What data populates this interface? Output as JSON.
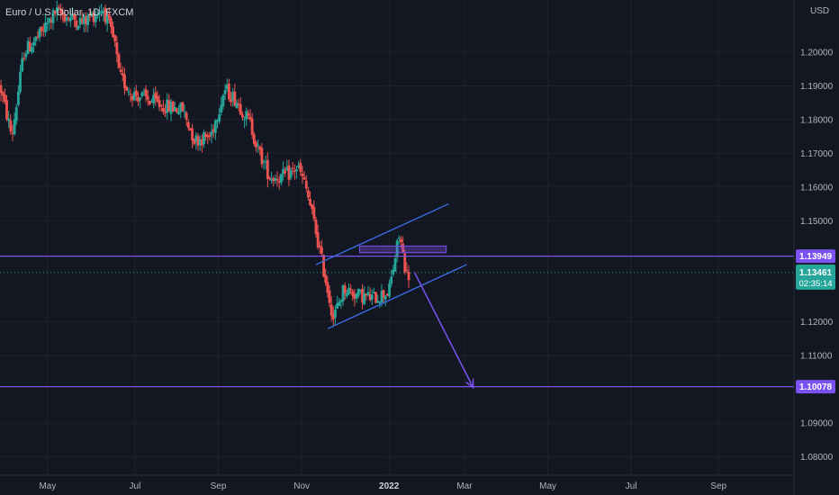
{
  "header": {
    "symbol_title": "Euro / U.S. Dollar, 1D, FXCM"
  },
  "price_axis": {
    "currency": "USD"
  },
  "chart_data": {
    "type": "candlestick",
    "title": "Euro / U.S. Dollar, 1D, FXCM",
    "ylim": [
      1.0745,
      1.2155
    ],
    "y_ticks": [
      "1.20000",
      "1.19000",
      "1.18000",
      "1.17000",
      "1.16000",
      "1.15000",
      "1.12000",
      "1.11000",
      "1.09000",
      "1.08000"
    ],
    "x_ticks": [
      {
        "label": "May",
        "t": 0.06
      },
      {
        "label": "Jul",
        "t": 0.17
      },
      {
        "label": "Sep",
        "t": 0.275
      },
      {
        "label": "Nov",
        "t": 0.38
      },
      {
        "label": "2022",
        "t": 0.49,
        "bold": true
      },
      {
        "label": "Mar",
        "t": 0.585
      },
      {
        "label": "May",
        "t": 0.69
      },
      {
        "label": "Jul",
        "t": 0.795
      },
      {
        "label": "Sep",
        "t": 0.905
      }
    ],
    "candles": {
      "color_up": "#26a69a",
      "color_down": "#ef5350",
      "anchors": [
        [
          0.0,
          1.19
        ],
        [
          0.015,
          1.175
        ],
        [
          0.03,
          1.2
        ],
        [
          0.05,
          1.205
        ],
        [
          0.07,
          1.212
        ],
        [
          0.09,
          1.21
        ],
        [
          0.105,
          1.209
        ],
        [
          0.13,
          1.213
        ],
        [
          0.145,
          1.202
        ],
        [
          0.15,
          1.193
        ],
        [
          0.165,
          1.188
        ],
        [
          0.185,
          1.186
        ],
        [
          0.205,
          1.184
        ],
        [
          0.23,
          1.183
        ],
        [
          0.245,
          1.174
        ],
        [
          0.265,
          1.175
        ],
        [
          0.283,
          1.189
        ],
        [
          0.297,
          1.186
        ],
        [
          0.315,
          1.179
        ],
        [
          0.325,
          1.171
        ],
        [
          0.34,
          1.163
        ],
        [
          0.355,
          1.163
        ],
        [
          0.365,
          1.164
        ],
        [
          0.375,
          1.166
        ],
        [
          0.385,
          1.16
        ],
        [
          0.395,
          1.15
        ],
        [
          0.408,
          1.135
        ],
        [
          0.42,
          1.121
        ],
        [
          0.433,
          1.13
        ],
        [
          0.45,
          1.128
        ],
        [
          0.47,
          1.127
        ],
        [
          0.49,
          1.129
        ],
        [
          0.503,
          1.146
        ],
        [
          0.512,
          1.134
        ]
      ],
      "count": 212,
      "x_range": [
        0.0,
        0.516
      ]
    },
    "horizontal_lines": [
      {
        "price": 1.13949,
        "label": "1.13949",
        "color": "#7b52ef"
      },
      {
        "price": 1.10078,
        "label": "1.10078",
        "color": "#7b52ef"
      }
    ],
    "last_price": {
      "price": 1.13461,
      "label": "1.13461",
      "countdown": "02:35:14",
      "color": "#26a69a"
    },
    "channel_lines": [
      {
        "from": [
          0.398,
          1.137
        ],
        "to": [
          0.565,
          1.155
        ]
      },
      {
        "from": [
          0.413,
          1.118
        ],
        "to": [
          0.588,
          1.137
        ]
      }
    ],
    "zone": {
      "t_start": 0.453,
      "t_end": 0.562,
      "price_top": 1.1425,
      "price_bottom": 1.1405
    },
    "projection": {
      "from": [
        0.522,
        1.1347
      ],
      "to": [
        0.596,
        1.1005
      ]
    },
    "colors": {
      "background": "#131722",
      "grid": "#1e222d",
      "axis_text": "#b2b5be",
      "drawing": "#3a6fe8",
      "accent": "#7b52ef"
    }
  }
}
